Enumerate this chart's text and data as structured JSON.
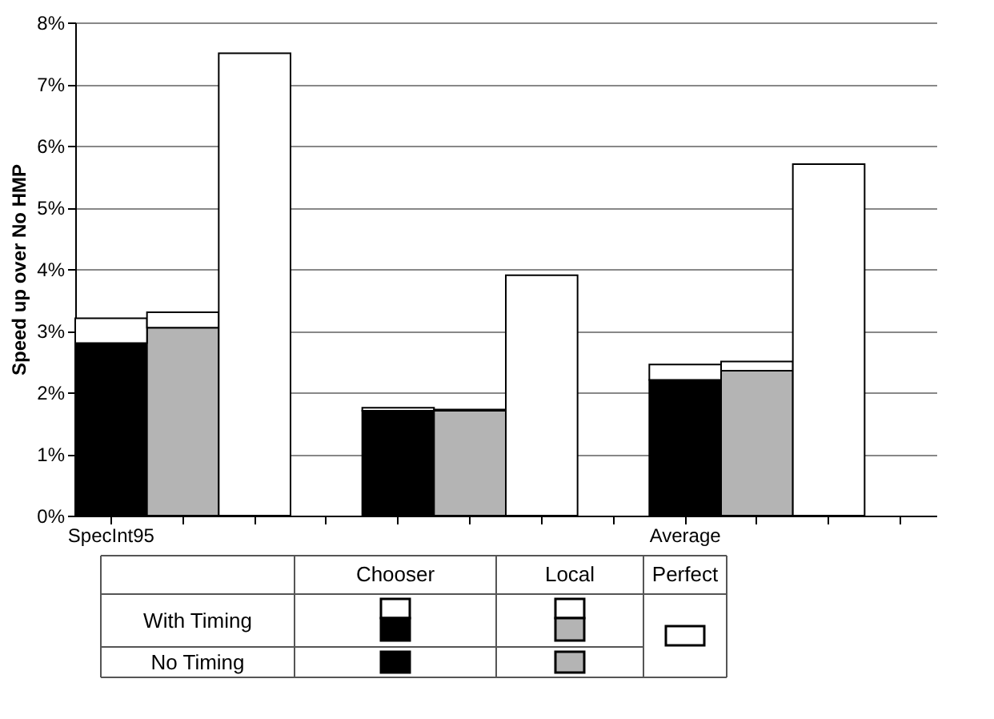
{
  "chart_data": {
    "type": "bar",
    "stacked": true,
    "ylabel": "Speed up over No HMP",
    "categories": [
      "SpecInt95",
      null,
      null,
      null,
      null,
      null,
      null,
      null,
      "Average",
      null,
      null,
      null
    ],
    "series": [
      {
        "colors": [
          "#000000",
          "#b4b4b4",
          null,
          null,
          "#000000",
          "#b4b4b4",
          null,
          null,
          "#000000",
          "#b4b4b4",
          null,
          null
        ],
        "values": [
          2.8,
          3.05,
          null,
          null,
          1.7,
          1.7,
          null,
          null,
          2.2,
          2.35,
          null,
          null
        ]
      },
      {
        "color": "#ffffff",
        "values": [
          0.4,
          0.25,
          null,
          null,
          0.05,
          0.02,
          null,
          null,
          0.25,
          0.15,
          null,
          null
        ]
      },
      {
        "color": "#ffffff",
        "values": [
          null,
          null,
          7.5,
          null,
          null,
          null,
          3.9,
          null,
          null,
          null,
          5.7,
          null
        ]
      }
    ],
    "ylim": [
      0,
      8
    ],
    "yticks": [
      {
        "value": 0,
        "label": "0%"
      },
      {
        "value": 1,
        "label": "1%"
      },
      {
        "value": 2,
        "label": "2%"
      },
      {
        "value": 3,
        "label": "3%"
      },
      {
        "value": 4,
        "label": "4%"
      },
      {
        "value": 5,
        "label": "5%"
      },
      {
        "value": 6,
        "label": "6%"
      },
      {
        "value": 7,
        "label": "7%"
      },
      {
        "value": 8,
        "label": "8%"
      }
    ],
    "grid": "y",
    "annotations": [
      "Chooser",
      "Local",
      "Perfect",
      "With Timing",
      "No Timing"
    ]
  }
}
